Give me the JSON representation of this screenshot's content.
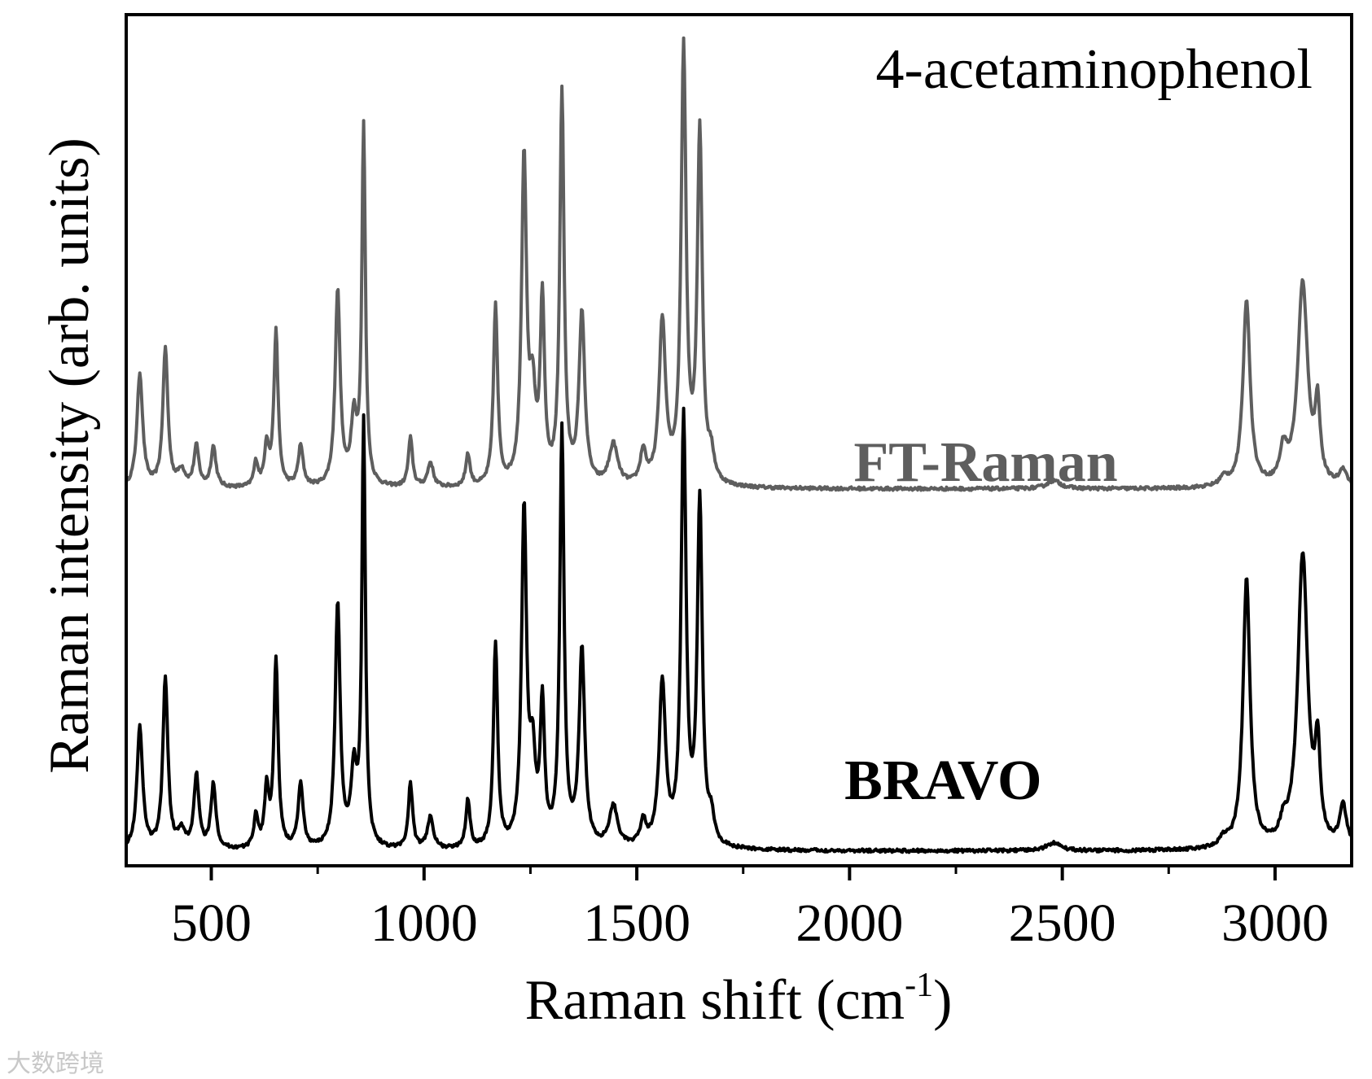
{
  "watermark": "大数跨境",
  "chart_data": {
    "type": "line",
    "title": "4-acetaminophenol",
    "xlabel": "Raman shift (cm",
    "xlabel_sup": "-1",
    "xlabel_tail": ")",
    "ylabel": "Raman intensity (arb. units)",
    "xlim": [
      300,
      3180
    ],
    "ylim": [
      0,
      1
    ],
    "xticks": [
      500,
      1000,
      1500,
      2000,
      2500,
      3000
    ],
    "grid": false,
    "legend": "inline labels",
    "series": [
      {
        "name": "FT-Raman",
        "color": "#5e5e5e",
        "baseline": 0.45,
        "height_scale": 1.0,
        "noise": 0.004,
        "peaks": [
          [
            332,
            0.14,
            8
          ],
          [
            392,
            0.17,
            7
          ],
          [
            430,
            0.02,
            10
          ],
          [
            465,
            0.05,
            7
          ],
          [
            505,
            0.05,
            7
          ],
          [
            605,
            0.03,
            6
          ],
          [
            630,
            0.05,
            6
          ],
          [
            652,
            0.19,
            6
          ],
          [
            710,
            0.05,
            7
          ],
          [
            797,
            0.24,
            7
          ],
          [
            835,
            0.08,
            8
          ],
          [
            858,
            0.44,
            5
          ],
          [
            968,
            0.06,
            6
          ],
          [
            1015,
            0.03,
            8
          ],
          [
            1103,
            0.04,
            6
          ],
          [
            1168,
            0.22,
            6
          ],
          [
            1235,
            0.4,
            7
          ],
          [
            1255,
            0.1,
            8
          ],
          [
            1278,
            0.22,
            6
          ],
          [
            1324,
            0.48,
            6
          ],
          [
            1371,
            0.21,
            8
          ],
          [
            1445,
            0.05,
            12
          ],
          [
            1515,
            0.04,
            8
          ],
          [
            1560,
            0.2,
            9
          ],
          [
            1610,
            0.53,
            7
          ],
          [
            1648,
            0.43,
            7
          ],
          [
            1675,
            0.03,
            8
          ],
          [
            2480,
            0.01,
            20
          ],
          [
            2880,
            0.01,
            12
          ],
          [
            2933,
            0.23,
            10
          ],
          [
            3020,
            0.04,
            10
          ],
          [
            3065,
            0.25,
            14
          ],
          [
            3100,
            0.09,
            7
          ],
          [
            3160,
            0.02,
            10
          ]
        ],
        "label": "FT-Raman",
        "label_x": 2320,
        "label_y": 0.46
      },
      {
        "name": "BRAVO",
        "color": "#000000",
        "baseline": 0.006,
        "height_scale": 1.0,
        "noise": 0.004,
        "peaks": [
          [
            332,
            0.15,
            8
          ],
          [
            392,
            0.21,
            7
          ],
          [
            430,
            0.02,
            10
          ],
          [
            465,
            0.09,
            7
          ],
          [
            505,
            0.08,
            7
          ],
          [
            605,
            0.04,
            6
          ],
          [
            630,
            0.07,
            6
          ],
          [
            652,
            0.23,
            6
          ],
          [
            710,
            0.08,
            7
          ],
          [
            797,
            0.3,
            7
          ],
          [
            835,
            0.09,
            8
          ],
          [
            858,
            0.52,
            5
          ],
          [
            968,
            0.08,
            6
          ],
          [
            1015,
            0.04,
            8
          ],
          [
            1103,
            0.06,
            6
          ],
          [
            1168,
            0.25,
            6
          ],
          [
            1235,
            0.41,
            7
          ],
          [
            1255,
            0.1,
            8
          ],
          [
            1278,
            0.17,
            6
          ],
          [
            1324,
            0.51,
            6
          ],
          [
            1371,
            0.24,
            8
          ],
          [
            1445,
            0.05,
            12
          ],
          [
            1515,
            0.03,
            8
          ],
          [
            1560,
            0.2,
            9
          ],
          [
            1610,
            0.52,
            7
          ],
          [
            1648,
            0.42,
            7
          ],
          [
            1675,
            0.03,
            8
          ],
          [
            2480,
            0.01,
            20
          ],
          [
            2880,
            0.01,
            12
          ],
          [
            2933,
            0.33,
            10
          ],
          [
            3020,
            0.02,
            10
          ],
          [
            3065,
            0.36,
            14
          ],
          [
            3100,
            0.11,
            7
          ],
          [
            3160,
            0.05,
            10
          ]
        ],
        "label": "BRAVO",
        "label_x": 2220,
        "label_y": 0.07
      }
    ]
  }
}
